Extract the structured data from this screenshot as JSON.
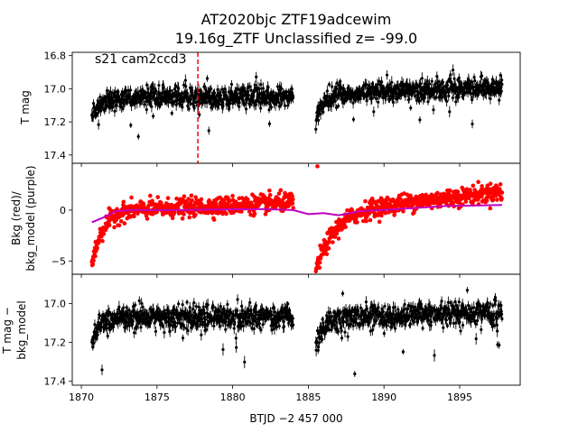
{
  "title": {
    "line1": "AT2020bjc  ZTF19adcewim",
    "line2": "19.16g_ZTF Unclassified z= -99.0"
  },
  "chart_data": [
    {
      "type": "scatter",
      "panel": "top",
      "annotation": "s21 cam2ccd3",
      "ylabel": "T mag",
      "y_inverted": true,
      "ylim": [
        17.45,
        16.78
      ],
      "yticks": [
        16.8,
        17.0,
        17.2,
        17.4
      ],
      "ytick_labels": [
        "16.8",
        "17.0",
        "17.2",
        "17.4"
      ],
      "xlim": [
        1869.4,
        1899.0
      ],
      "marker_color": "#000000",
      "errorbars": true,
      "vline": {
        "x": 1877.7,
        "color": "#ff0000",
        "style": "dashed"
      },
      "segments": [
        {
          "x_start": 1870.7,
          "x_end": 1884.0,
          "level": 17.05,
          "scatter": 0.055,
          "start_dip": 0.12
        },
        {
          "x_start": 1885.5,
          "x_end": 1897.8,
          "level": 17.03,
          "scatter": 0.055,
          "trend_end": 16.99,
          "start_dip": 0.15
        }
      ]
    },
    {
      "type": "scatter",
      "panel": "middle",
      "ylabel_line1": "Bkg (red)/",
      "ylabel_line2": "bkg_model (purple)",
      "ylim": [
        -6.3,
        4.6
      ],
      "yticks": [
        -5,
        0
      ],
      "ytick_labels": [
        "−5",
        "0"
      ],
      "xlim": [
        1869.4,
        1899.0
      ],
      "series": [
        {
          "marker_color": "#ff0000",
          "segments": [
            {
              "x_start": 1870.7,
              "x_end": 1884.0,
              "start_level": -5.5,
              "recover_days": 1.5,
              "plateau": 0.0,
              "end_level": 0.8,
              "scatter": 0.8
            },
            {
              "x_start": 1885.5,
              "x_end": 1897.8,
              "start_level": -5.8,
              "recover_days": 3.0,
              "plateau": 0.3,
              "end_level": 1.8,
              "scatter": 0.8
            }
          ],
          "outliers": [
            {
              "x": 1885.6,
              "y": 4.3
            }
          ]
        },
        {
          "line_color": "#bf00bf",
          "points": [
            [
              1870.7,
              -1.2
            ],
            [
              1871.5,
              -0.7
            ],
            [
              1872.3,
              -0.1
            ],
            [
              1873.5,
              0.0
            ],
            [
              1876.0,
              0.0
            ],
            [
              1879.0,
              0.05
            ],
            [
              1882.0,
              0.1
            ],
            [
              1884.0,
              0.0
            ],
            [
              1885.0,
              -0.4
            ],
            [
              1886.0,
              -0.3
            ],
            [
              1887.0,
              -0.5
            ],
            [
              1888.5,
              -0.1
            ],
            [
              1891.0,
              0.1
            ],
            [
              1894.0,
              0.4
            ],
            [
              1897.8,
              0.5
            ]
          ]
        }
      ]
    },
    {
      "type": "scatter",
      "panel": "bottom",
      "ylabel_line1": "T mag −",
      "ylabel_line2": "bkg_model",
      "y_inverted": true,
      "ylim": [
        17.42,
        16.85
      ],
      "yticks": [
        17.0,
        17.2,
        17.4
      ],
      "ytick_labels": [
        "17.0",
        "17.2",
        "17.4"
      ],
      "xlim": [
        1869.4,
        1899.0
      ],
      "xticks": [
        1870,
        1875,
        1880,
        1885,
        1890,
        1895
      ],
      "xtick_labels": [
        "1870",
        "1875",
        "1880",
        "1885",
        "1890",
        "1895"
      ],
      "xlabel": "BTJD −2 457 000",
      "marker_color": "#000000",
      "errorbars": true,
      "segments": [
        {
          "x_start": 1870.7,
          "x_end": 1884.0,
          "level": 17.07,
          "scatter": 0.055,
          "start_dip": 0.12
        },
        {
          "x_start": 1885.5,
          "x_end": 1897.8,
          "level": 17.07,
          "scatter": 0.055,
          "trend_end": 17.05,
          "start_dip": 0.15
        }
      ]
    }
  ]
}
